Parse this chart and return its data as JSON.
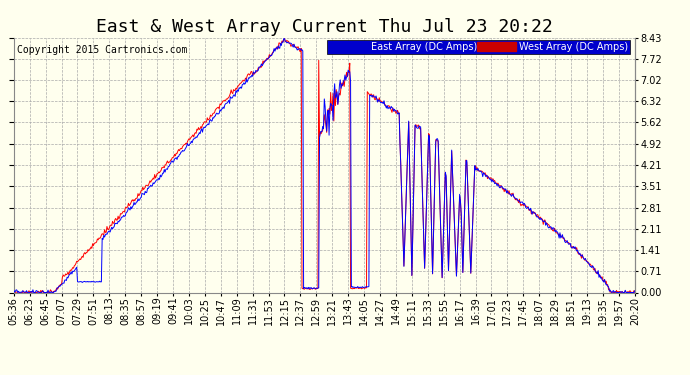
{
  "title": "East & West Array Current Thu Jul 23 20:22",
  "copyright": "Copyright 2015 Cartronics.com",
  "legend_east": "East Array (DC Amps)",
  "legend_west": "West Array (DC Amps)",
  "east_color": "#0000ff",
  "west_color": "#ff0000",
  "bg_color": "#ffffee",
  "grid_color": "#aaaaaa",
  "ylim": [
    0.0,
    8.43
  ],
  "yticks": [
    0.0,
    0.71,
    1.41,
    2.11,
    2.81,
    3.51,
    4.21,
    4.92,
    5.62,
    6.32,
    7.02,
    7.72,
    8.43
  ],
  "xtick_labels": [
    "05:36",
    "06:23",
    "06:45",
    "07:07",
    "07:29",
    "07:51",
    "08:13",
    "08:35",
    "08:57",
    "09:19",
    "09:41",
    "10:03",
    "10:25",
    "10:47",
    "11:09",
    "11:31",
    "11:53",
    "12:15",
    "12:37",
    "12:59",
    "13:21",
    "13:43",
    "14:05",
    "14:27",
    "14:49",
    "15:11",
    "15:33",
    "15:55",
    "16:17",
    "16:39",
    "17:01",
    "17:23",
    "17:45",
    "18:07",
    "18:29",
    "18:51",
    "19:13",
    "19:35",
    "19:57",
    "20:20"
  ],
  "title_fontsize": 13,
  "axis_fontsize": 7,
  "copyright_fontsize": 7
}
